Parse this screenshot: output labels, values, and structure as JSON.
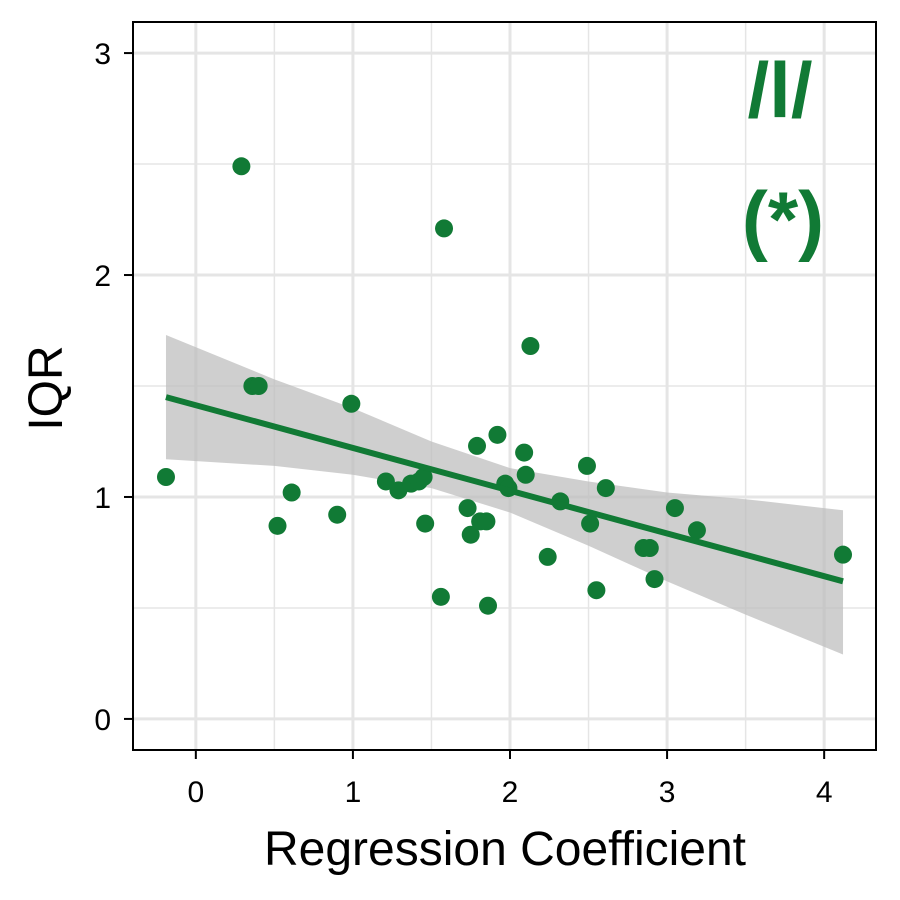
{
  "chart_data": {
    "type": "scatter",
    "title": "",
    "xlabel": "Regression Coefficient",
    "ylabel": "IQR",
    "xlim": [
      -0.4,
      4.33
    ],
    "ylim": [
      -0.14,
      3.14
    ],
    "x_ticks": [
      0,
      1,
      2,
      3,
      4
    ],
    "y_ticks": [
      0,
      1,
      2,
      3
    ],
    "x_tick_labels": [
      "0",
      "1",
      "2",
      "3",
      "4"
    ],
    "y_tick_labels": [
      "0",
      "1",
      "2",
      "3"
    ],
    "grid": true,
    "annotation_lines": [
      "/l/",
      "(*)"
    ],
    "colors": {
      "points": "#117a35",
      "fit_line": "#117a35",
      "ribbon": "#bdbdbd",
      "grid": "#e5e5e5",
      "annotation": "#117a35"
    },
    "points": [
      {
        "x": -0.19,
        "y": 1.09
      },
      {
        "x": 0.29,
        "y": 2.49
      },
      {
        "x": 0.36,
        "y": 1.5
      },
      {
        "x": 0.4,
        "y": 1.5
      },
      {
        "x": 0.52,
        "y": 0.87
      },
      {
        "x": 0.61,
        "y": 1.02
      },
      {
        "x": 0.9,
        "y": 0.92
      },
      {
        "x": 0.99,
        "y": 1.42
      },
      {
        "x": 1.21,
        "y": 1.07
      },
      {
        "x": 1.29,
        "y": 1.03
      },
      {
        "x": 1.37,
        "y": 1.06
      },
      {
        "x": 1.42,
        "y": 1.07
      },
      {
        "x": 1.45,
        "y": 1.09
      },
      {
        "x": 1.46,
        "y": 0.88
      },
      {
        "x": 1.56,
        "y": 0.55
      },
      {
        "x": 1.58,
        "y": 2.21
      },
      {
        "x": 1.73,
        "y": 0.95
      },
      {
        "x": 1.75,
        "y": 0.83
      },
      {
        "x": 1.79,
        "y": 1.23
      },
      {
        "x": 1.81,
        "y": 0.89
      },
      {
        "x": 1.85,
        "y": 0.89
      },
      {
        "x": 1.86,
        "y": 0.51
      },
      {
        "x": 1.92,
        "y": 1.28
      },
      {
        "x": 1.97,
        "y": 1.06
      },
      {
        "x": 1.99,
        "y": 1.04
      },
      {
        "x": 2.09,
        "y": 1.2
      },
      {
        "x": 2.1,
        "y": 1.1
      },
      {
        "x": 2.13,
        "y": 1.68
      },
      {
        "x": 2.24,
        "y": 0.73
      },
      {
        "x": 2.32,
        "y": 0.98
      },
      {
        "x": 2.49,
        "y": 1.14
      },
      {
        "x": 2.51,
        "y": 0.88
      },
      {
        "x": 2.55,
        "y": 0.58
      },
      {
        "x": 2.61,
        "y": 1.04
      },
      {
        "x": 2.85,
        "y": 0.77
      },
      {
        "x": 2.89,
        "y": 0.77
      },
      {
        "x": 2.92,
        "y": 0.63
      },
      {
        "x": 3.05,
        "y": 0.95
      },
      {
        "x": 3.19,
        "y": 0.85
      },
      {
        "x": 4.12,
        "y": 0.74
      }
    ],
    "fit_line": {
      "x": [
        -0.19,
        4.12
      ],
      "y": [
        1.45,
        0.62
      ]
    },
    "confidence_band": {
      "x": [
        -0.19,
        0.5,
        1.0,
        1.5,
        2.0,
        2.5,
        3.0,
        3.5,
        4.12
      ],
      "upper": [
        1.73,
        1.53,
        1.4,
        1.25,
        1.13,
        1.07,
        1.02,
        0.99,
        0.94
      ],
      "lower": [
        1.17,
        1.14,
        1.1,
        1.04,
        0.93,
        0.78,
        0.62,
        0.47,
        0.29
      ]
    }
  }
}
